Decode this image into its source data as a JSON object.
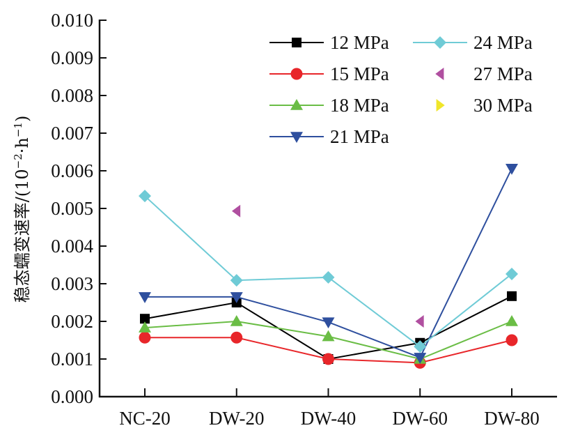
{
  "chart_data": {
    "type": "line",
    "title": "",
    "xlabel": "",
    "ylabel": "稳态蠕变速率/(10⁻²·h⁻¹)",
    "ylabel_parts": {
      "main": "稳态蠕变速率/(10",
      "sup1": "−2",
      "mid": "·h",
      "sup2": "−1",
      "end": ")"
    },
    "ylim": [
      0,
      0.01
    ],
    "yticks": [
      "0.000",
      "0.001",
      "0.002",
      "0.003",
      "0.004",
      "0.005",
      "0.006",
      "0.007",
      "0.008",
      "0.009",
      "0.010"
    ],
    "categories": [
      "NC-20",
      "DW-20",
      "DW-40",
      "DW-60",
      "DW-80"
    ],
    "grid": false,
    "legend_position": "top-right",
    "series": [
      {
        "name": "12 MPa",
        "color": "#000000",
        "marker": "square",
        "line": true,
        "values": [
          0.00207,
          0.0025,
          0.001,
          0.00143,
          0.00267
        ]
      },
      {
        "name": "15 MPa",
        "color": "#e8262a",
        "marker": "circle",
        "line": true,
        "values": [
          0.00157,
          0.00157,
          0.001,
          0.0009,
          0.0015
        ]
      },
      {
        "name": "18 MPa",
        "color": "#6abd45",
        "marker": "triangle-up",
        "line": true,
        "values": [
          0.00183,
          0.002,
          0.0016,
          0.001,
          0.002
        ]
      },
      {
        "name": "21 MPa",
        "color": "#2e4f9e",
        "marker": "triangle-down",
        "line": true,
        "values": [
          0.00265,
          0.00265,
          0.00198,
          0.00104,
          0.00606
        ]
      },
      {
        "name": "24 MPa",
        "color": "#6fcbd6",
        "marker": "diamond",
        "line": true,
        "values": [
          0.00533,
          0.00309,
          0.00317,
          0.00133,
          0.00326
        ]
      },
      {
        "name": "27 MPa",
        "color": "#b04fa0",
        "marker": "triangle-left",
        "line": false,
        "values": [
          null,
          0.00493,
          null,
          0.002,
          null
        ]
      },
      {
        "name": "30 MPa",
        "color": "#f0e62a",
        "marker": "triangle-right",
        "line": false,
        "values": [
          null,
          null,
          null,
          null,
          null
        ]
      }
    ]
  }
}
